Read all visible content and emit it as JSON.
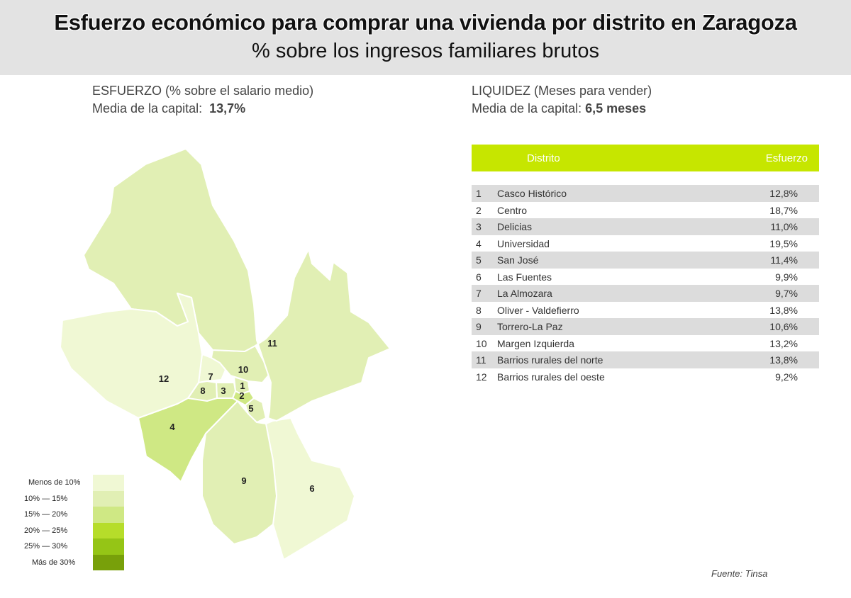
{
  "header": {
    "title": "Esfuerzo económico para comprar una vivienda por distrito en Zaragoza",
    "subtitle": "% sobre los ingresos familiares brutos"
  },
  "esfuerzo": {
    "label": "ESFUERZO (% sobre el salario medio)",
    "media_label": "Media de la capital:",
    "media_value": "13,7%"
  },
  "liquidez": {
    "label": "LIQUIDEZ (Meses para vender)",
    "media_label": "Media de la capital:",
    "media_value": "6,5 meses"
  },
  "table": {
    "col_distrito": "Distrito",
    "col_esfuerzo": "Esfuerzo"
  },
  "source": "Fuente: Tinsa",
  "colors": {
    "accent": "#c6e600",
    "row_shade": "#dcdcdc",
    "header_bg": "#e3e3e3",
    "boundary": "#ffffff"
  },
  "chart_data": {
    "type": "table",
    "title": "Esfuerzo económico para comprar una vivienda por distrito en Zaragoza",
    "subtitle": "% sobre los ingresos familiares brutos",
    "districts": [
      {
        "num": "1",
        "name": "Casco Histórico",
        "value": "12,8%",
        "pct": 12.8
      },
      {
        "num": "2",
        "name": "Centro",
        "value": "18,7%",
        "pct": 18.7
      },
      {
        "num": "3",
        "name": "Delicias",
        "value": "11,0%",
        "pct": 11.0
      },
      {
        "num": "4",
        "name": "Universidad",
        "value": "19,5%",
        "pct": 19.5
      },
      {
        "num": "5",
        "name": "San José",
        "value": "11,4%",
        "pct": 11.4
      },
      {
        "num": "6",
        "name": "Las Fuentes",
        "value": "9,9%",
        "pct": 9.9
      },
      {
        "num": "7",
        "name": "La Almozara",
        "value": "9,7%",
        "pct": 9.7
      },
      {
        "num": "8",
        "name": "Oliver - Valdefierro",
        "value": "13,8%",
        "pct": 13.8
      },
      {
        "num": "9",
        "name": "Torrero-La Paz",
        "value": "10,6%",
        "pct": 10.6
      },
      {
        "num": "10",
        "name": "Margen Izquierda",
        "value": "13,2%",
        "pct": 13.2
      },
      {
        "num": "11",
        "name": "Barrios rurales del norte",
        "value": "13,8%",
        "pct": 13.8
      },
      {
        "num": "12",
        "name": "Barrios rurales del oeste",
        "value": "9,2%",
        "pct": 9.2
      }
    ],
    "legend": [
      {
        "label": "Menos de 10%",
        "color": "#f0f8d4"
      },
      {
        "label": "10%    —    15%",
        "color": "#e1efb4"
      },
      {
        "label": "15%    —    20%",
        "color": "#cfe884"
      },
      {
        "label": "20%    —    25%",
        "color": "#b6dd2a"
      },
      {
        "label": "25%    —    30%",
        "color": "#95c516"
      },
      {
        "label": "Más de 30%",
        "color": "#78a00a"
      }
    ]
  }
}
